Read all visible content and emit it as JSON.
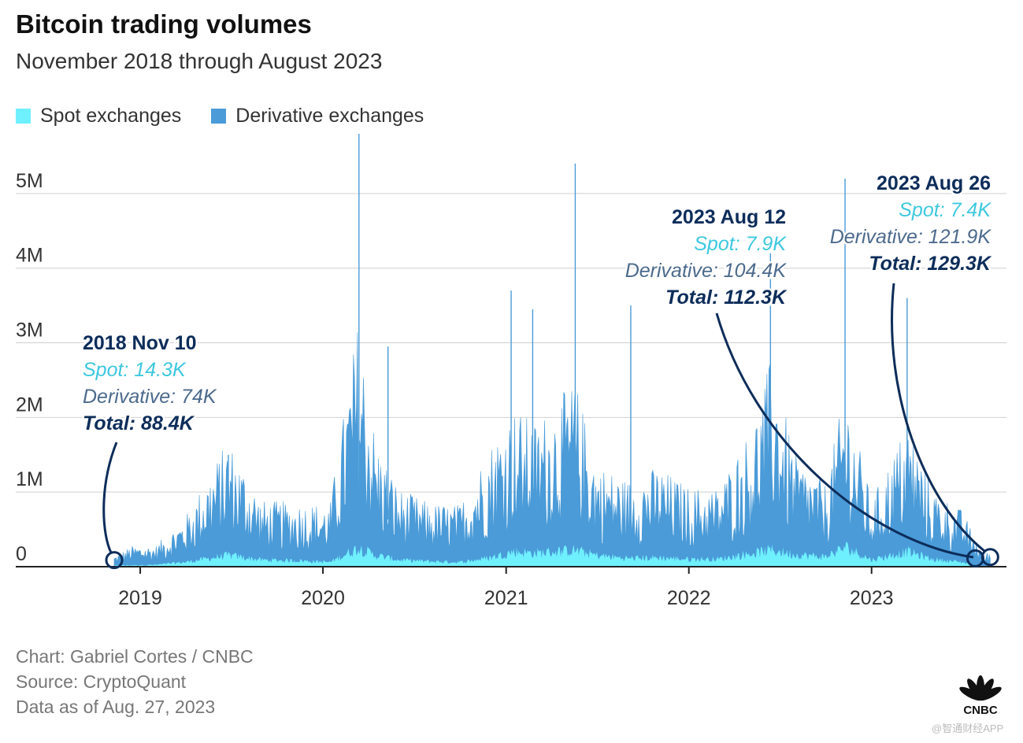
{
  "title": "Bitcoin trading volumes",
  "subtitle": "November 2018 through August 2023",
  "legend": [
    {
      "label": "Spot exchanges",
      "color": "#6ff0ff"
    },
    {
      "label": "Derivative exchanges",
      "color": "#4a9bd8"
    }
  ],
  "footer": {
    "credit": "Chart: Gabriel Cortes / CNBC",
    "source": "Source: CryptoQuant",
    "data_as_of": "Data as of Aug. 27, 2023"
  },
  "brand": {
    "logo_label": "CNBC",
    "watermark": "@智通财经APP"
  },
  "colors": {
    "spot": "#6ff0ff",
    "derivative": "#4a9bd8",
    "annotation_dark": "#0d2d5a",
    "annotation_spot": "#3ec8df",
    "annotation_derivative": "#4c6a8c"
  },
  "chart_data": {
    "type": "area",
    "stacked": true,
    "x_range": [
      "2018-11-10",
      "2023-08-27"
    ],
    "ylim": [
      0,
      5800000
    ],
    "y_ticks": [
      {
        "value": 0,
        "label": "0"
      },
      {
        "value": 1000000,
        "label": "1M"
      },
      {
        "value": 2000000,
        "label": "2M"
      },
      {
        "value": 3000000,
        "label": "3M"
      },
      {
        "value": 4000000,
        "label": "4M"
      },
      {
        "value": 5000000,
        "label": "5M"
      }
    ],
    "x_ticks": [
      {
        "date": "2019-01-01",
        "label": "2019"
      },
      {
        "date": "2020-01-01",
        "label": "2020"
      },
      {
        "date": "2021-01-01",
        "label": "2021"
      },
      {
        "date": "2022-01-01",
        "label": "2022"
      },
      {
        "date": "2023-01-01",
        "label": "2023"
      }
    ],
    "grid": true,
    "legend_position": "top-left",
    "series": [
      {
        "name": "Spot exchanges",
        "dates": [
          "2018-11-10",
          "2018-12-15",
          "2019-02-01",
          "2019-04-01",
          "2019-06-26",
          "2019-09-01",
          "2019-11-15",
          "2020-01-15",
          "2020-03-12",
          "2020-04-15",
          "2020-06-01",
          "2020-08-01",
          "2020-10-01",
          "2020-12-01",
          "2021-01-15",
          "2021-03-01",
          "2021-05-19",
          "2021-07-01",
          "2021-09-01",
          "2021-11-01",
          "2022-01-01",
          "2022-03-01",
          "2022-05-10",
          "2022-06-15",
          "2022-08-01",
          "2022-10-01",
          "2022-11-10",
          "2023-01-01",
          "2023-03-15",
          "2023-05-01",
          "2023-07-01",
          "2023-08-12",
          "2023-08-26"
        ],
        "values": [
          14300,
          20000,
          25000,
          60000,
          150000,
          90000,
          80000,
          60000,
          250000,
          150000,
          90000,
          70000,
          60000,
          120000,
          200000,
          180000,
          220000,
          150000,
          110000,
          120000,
          100000,
          100000,
          180000,
          220000,
          160000,
          130000,
          260000,
          90000,
          200000,
          100000,
          60000,
          7900,
          7400
        ]
      },
      {
        "name": "Derivative exchanges",
        "dates": [
          "2018-11-10",
          "2018-12-15",
          "2019-02-01",
          "2019-04-01",
          "2019-06-26",
          "2019-09-01",
          "2019-11-15",
          "2020-01-15",
          "2020-03-12",
          "2020-04-15",
          "2020-06-01",
          "2020-08-01",
          "2020-10-01",
          "2020-12-01",
          "2021-01-15",
          "2021-03-01",
          "2021-05-19",
          "2021-07-01",
          "2021-09-01",
          "2021-11-01",
          "2022-01-01",
          "2022-03-01",
          "2022-05-10",
          "2022-06-15",
          "2022-08-01",
          "2022-10-01",
          "2022-11-10",
          "2023-01-01",
          "2023-03-15",
          "2023-05-01",
          "2023-07-01",
          "2023-08-12",
          "2023-08-26"
        ],
        "values": [
          74000,
          150000,
          150000,
          350000,
          900000,
          450000,
          450000,
          450000,
          1800000,
          900000,
          550000,
          450000,
          450000,
          900000,
          1100000,
          1000000,
          1300000,
          700000,
          600000,
          700000,
          550000,
          550000,
          1000000,
          1500000,
          750000,
          550000,
          1200000,
          450000,
          1000000,
          550000,
          400000,
          104400,
          121900
        ]
      }
    ],
    "spikes": [
      {
        "date": "2020-03-13",
        "value": 5950000
      },
      {
        "date": "2021-05-19",
        "value": 5400000
      },
      {
        "date": "2022-11-09",
        "value": 5200000
      },
      {
        "date": "2022-06-13",
        "value": 4200000
      },
      {
        "date": "2023-03-13",
        "value": 3600000
      },
      {
        "date": "2021-01-11",
        "value": 3700000
      },
      {
        "date": "2021-02-23",
        "value": 3450000
      },
      {
        "date": "2021-09-07",
        "value": 3500000
      },
      {
        "date": "2020-05-10",
        "value": 2950000
      },
      {
        "date": "2019-06-26",
        "value": 1500000
      }
    ],
    "annotations": [
      {
        "date": "2018-11-10",
        "title": "2018 Nov 10",
        "spot": "Spot: 14.3K",
        "derivative": "Derivative: 74K",
        "total": "Total: 88.4K",
        "align": "left"
      },
      {
        "date": "2023-08-12",
        "title": "2023 Aug 12",
        "spot": "Spot: 7.9K",
        "derivative": "Derivative: 104.4K",
        "total": "Total: 112.3K",
        "align": "right"
      },
      {
        "date": "2023-08-26",
        "title": "2023 Aug 26",
        "spot": "Spot: 7.4K",
        "derivative": "Derivative: 121.9K",
        "total": "Total: 129.3K",
        "align": "right"
      }
    ]
  }
}
